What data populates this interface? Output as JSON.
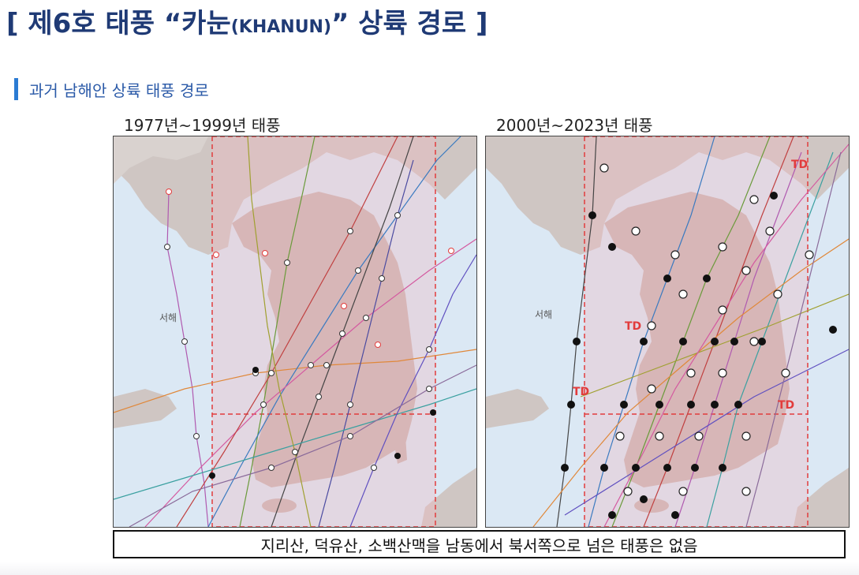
{
  "header": {
    "title_main": "[ 제6호 태풍 “카눈",
    "title_small": "(KHANUN)",
    "title_end": "” 상륙 경로 ]"
  },
  "section": {
    "label": "과거 남해안 상륙 태풍 경로"
  },
  "panels": [
    {
      "label": "1977년~1999년 태풍",
      "sea_label": "서해",
      "markers": []
    },
    {
      "label": "2000년~2023년 태풍",
      "sea_label": "서해",
      "markers": [
        "TD",
        "TD",
        "TD",
        "TD"
      ]
    }
  ],
  "note": "지리산, 덕유산, 소백산맥을 남동에서 북서쪽으로 넘은 태풍은 없음",
  "colors": {
    "title": "#1f3a75",
    "accent_bar": "#2b7bd3",
    "section_text": "#2b5aa8",
    "sea": "#dbe8f4",
    "land": "#c9b6b2",
    "box": "#e23c3c"
  }
}
